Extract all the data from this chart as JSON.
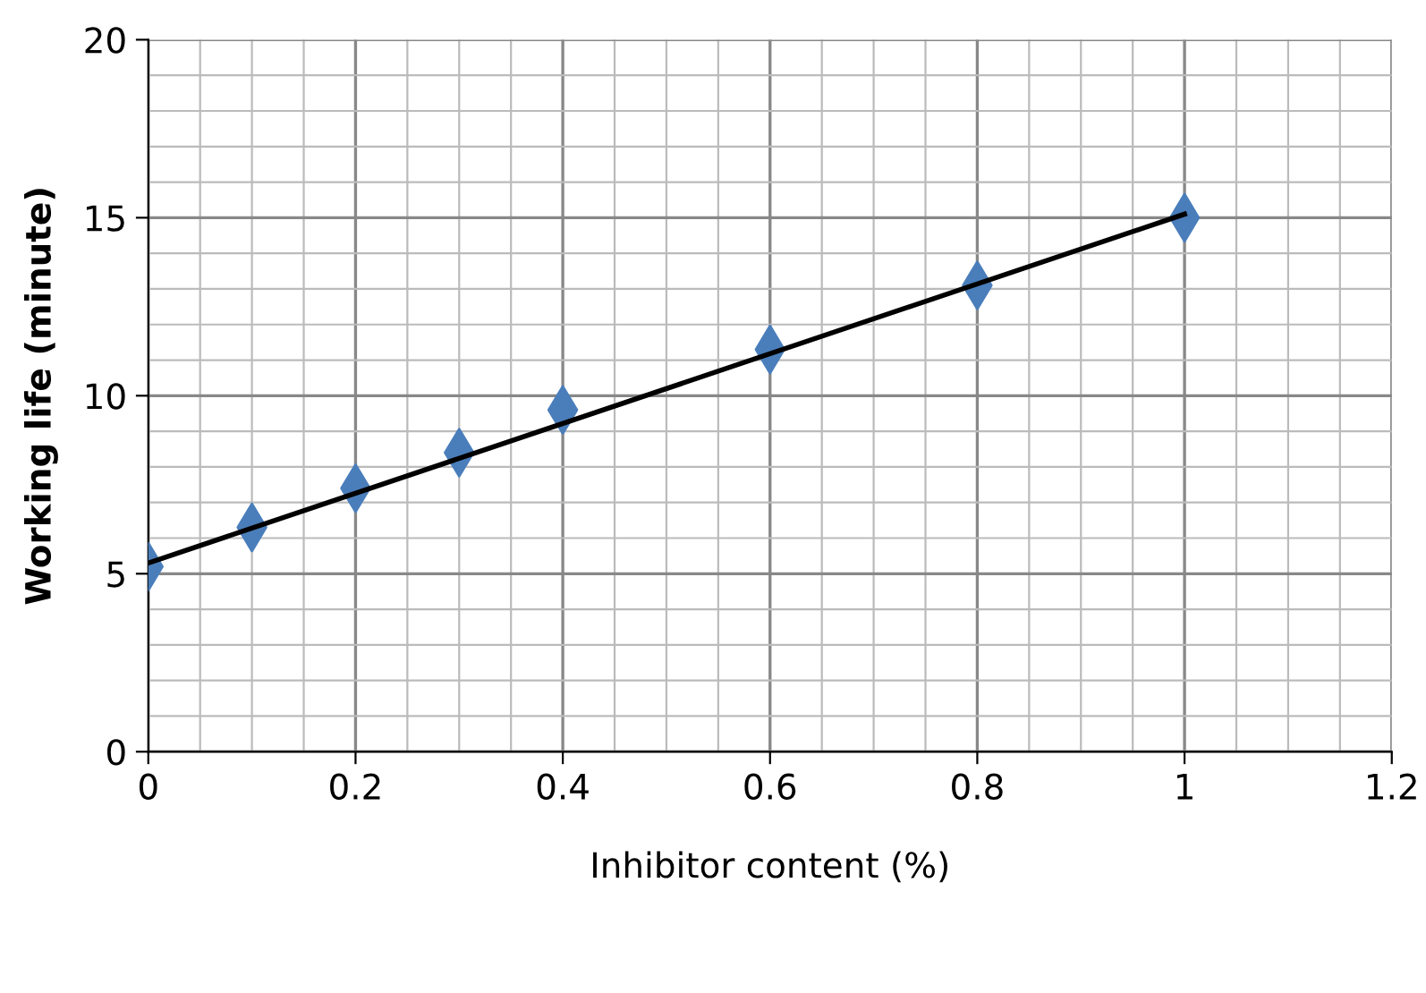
{
  "chart_data": {
    "type": "scatter",
    "xlabel": "Inhibitor content (%)",
    "ylabel": "Working life (minute)",
    "x": [
      0,
      0.1,
      0.2,
      0.3,
      0.4,
      0.6,
      0.8,
      1
    ],
    "series": [
      {
        "color": "#4a7ebb",
        "marker": "diamond",
        "values": [
          5.2,
          6.3,
          7.4,
          8.4,
          9.6,
          11.3,
          13.1,
          15.0
        ]
      },
      {
        "type": "line",
        "color": "#000000",
        "x": [
          0,
          1
        ],
        "values": [
          5.3,
          15.1
        ],
        "marker": "none",
        "line_style": "solid"
      }
    ],
    "xlim": [
      0,
      1.2
    ],
    "xticks": [
      0,
      0.2,
      0.4,
      0.6,
      0.8,
      1,
      1.2
    ],
    "ylim": [
      0,
      20
    ],
    "yticks": [
      0,
      5,
      10,
      15,
      20
    ],
    "grid": true
  }
}
